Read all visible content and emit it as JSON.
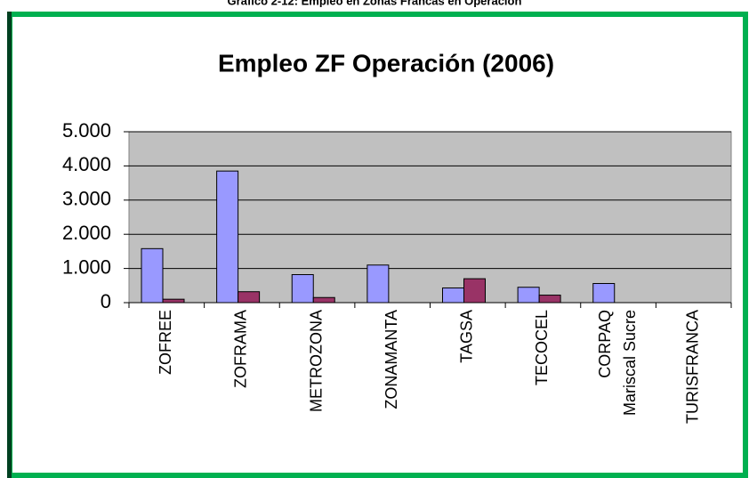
{
  "caption": "Gráfico 2-12: Empleo en Zonas Francas en Operación",
  "chart_data": {
    "type": "bar",
    "title": "Empleo ZF Operación (2006)",
    "categories": [
      "ZOFREE",
      "ZOFRAMA",
      "METROZONA",
      "ZONAMANTA",
      "TAGSA",
      "TECOCEL",
      "CORPAQ\nMariscal Sucre",
      "TURISFRANCA"
    ],
    "series": [
      {
        "color": "#9999ff",
        "values": [
          1580,
          3850,
          820,
          1100,
          430,
          450,
          560,
          0
        ]
      },
      {
        "color": "#993366",
        "values": [
          100,
          320,
          150,
          0,
          700,
          220,
          0,
          0
        ]
      }
    ],
    "ylim": [
      0,
      5000
    ],
    "yticks": [
      0,
      {
        "value": 1000,
        "label": "1.000"
      },
      {
        "value": 2000,
        "label": "2.000"
      },
      {
        "value": 3000,
        "label": "3.000"
      },
      {
        "value": 4000,
        "label": "4.000"
      },
      {
        "value": 5000,
        "label": "5.000"
      }
    ],
    "grid": true
  }
}
